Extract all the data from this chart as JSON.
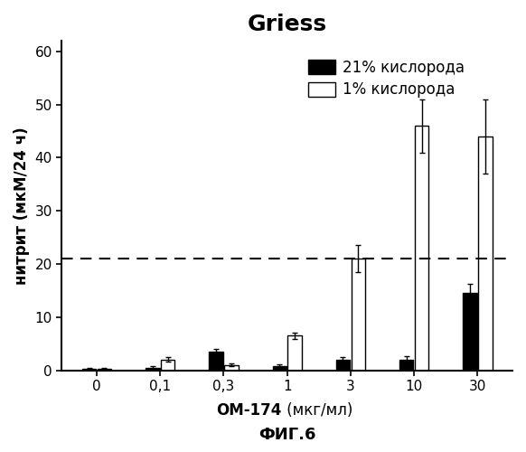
{
  "title": "Griess",
  "xlabel_bold": "ОМ-174",
  "xlabel_normal": " (мкг/мл)",
  "ylabel": "нитрит (мкМ/24 ч)",
  "footnote": "ФИГ.6",
  "categories": [
    "0",
    "0,1",
    "0,3",
    "1",
    "3",
    "10",
    "30"
  ],
  "bar21_values": [
    0.3,
    0.5,
    3.5,
    0.8,
    2.0,
    2.0,
    14.5
  ],
  "bar1_values": [
    0.3,
    2.0,
    1.0,
    6.5,
    21.0,
    46.0,
    44.0
  ],
  "bar21_errors": [
    0.2,
    0.3,
    0.5,
    0.3,
    0.4,
    0.6,
    1.8
  ],
  "bar1_errors": [
    0.2,
    0.4,
    0.3,
    0.6,
    2.5,
    5.0,
    7.0
  ],
  "bar21_color": "#000000",
  "bar1_color": "#ffffff",
  "bar_edgecolor": "#000000",
  "dashed_line_y": 21.0,
  "ylim": [
    0,
    62
  ],
  "yticks": [
    0,
    10,
    20,
    30,
    40,
    50,
    60
  ],
  "legend_label_21": "21% кислорода",
  "legend_label_1": "1% кислорода",
  "bar_width": 0.22,
  "title_fontsize": 18,
  "axis_label_fontsize": 12,
  "tick_fontsize": 11,
  "legend_fontsize": 12,
  "footnote_fontsize": 13
}
